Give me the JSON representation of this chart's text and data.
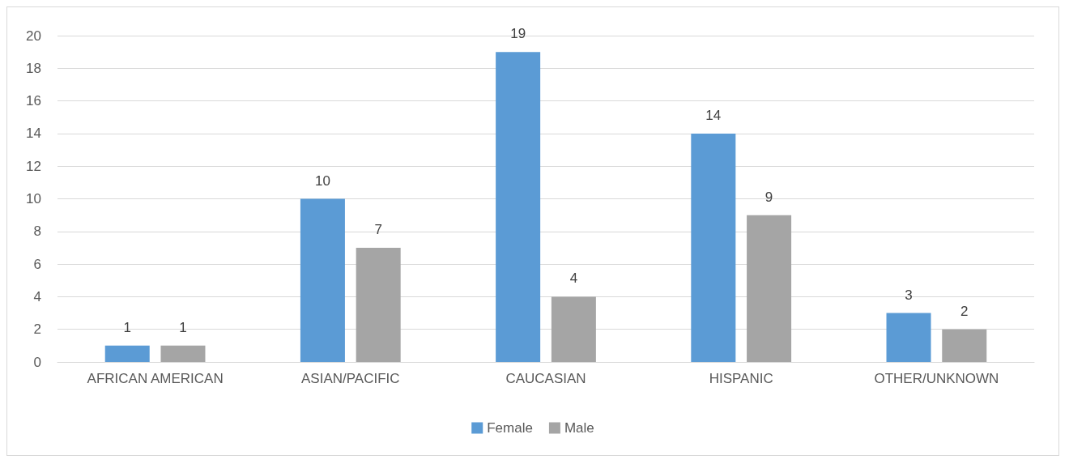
{
  "chart_data": {
    "type": "bar",
    "categories": [
      "AFRICAN AMERICAN",
      "ASIAN/PACIFIC",
      "CAUCASIAN",
      "HISPANIC",
      "OTHER/UNKNOWN"
    ],
    "series": [
      {
        "name": "Female",
        "color": "#5b9bd5",
        "values": [
          1,
          10,
          19,
          14,
          3
        ]
      },
      {
        "name": "Male",
        "color": "#a5a5a5",
        "values": [
          1,
          7,
          4,
          9,
          2
        ]
      }
    ],
    "ylim": [
      0,
      20
    ],
    "yticks": [
      0,
      2,
      4,
      6,
      8,
      10,
      12,
      14,
      16,
      18,
      20
    ],
    "grid": "y",
    "legend": "bottom",
    "data_labels": true
  }
}
